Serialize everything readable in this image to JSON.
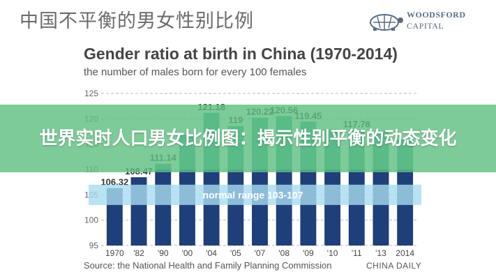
{
  "header": {
    "title": "中国不平衡的男女性别比例"
  },
  "logo": {
    "line1": "WOODSFORD",
    "line2": "CAPITAL",
    "icon": "turtle-icon"
  },
  "banner": {
    "text": "世界实时人口男女比例图：揭示性别平衡的动态变化"
  },
  "source": "Source: the National Health and Family Planning Commission",
  "credit": "CHINA DAILY",
  "chart_data": {
    "type": "bar",
    "title": "Gender ratio at birth in China (1970-2014)",
    "subtitle": "the number of males born for every 100 females",
    "categories": [
      "1970",
      "'82",
      "'90",
      "'00",
      "'04",
      "'05",
      "'07",
      "'08",
      "'09",
      "'10",
      "'11",
      "'13",
      "2014"
    ],
    "values": [
      106.32,
      108.47,
      111.14,
      116.86,
      121.18,
      118.58,
      120.22,
      120.56,
      119.45,
      117.94,
      117.78,
      117.6,
      115.88
    ],
    "value_labels": [
      "106.32",
      "108.47",
      "111.14",
      "",
      "121.18",
      "119",
      "120.22",
      "120.56",
      "119.45",
      "",
      "117.78",
      "",
      ""
    ],
    "ylim": [
      95,
      125
    ],
    "yticks": [
      95,
      100,
      105,
      110,
      115,
      120,
      125
    ],
    "grid": true,
    "normal_range": {
      "label": "normal range 103-107",
      "low": 103,
      "high": 107
    },
    "colors": {
      "bar_top": "#3aa79a",
      "bar_bottom": "#1f3f7a",
      "band": "#a8dcf0",
      "grid": "#bbbbbb"
    }
  }
}
